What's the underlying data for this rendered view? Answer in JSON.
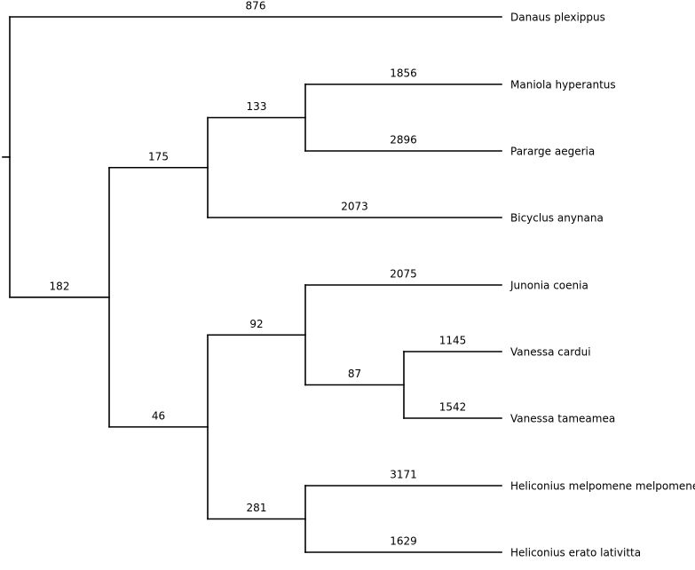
{
  "tree": {
    "nodes": [
      {
        "id": "root",
        "parent": null,
        "branch_label": ""
      },
      {
        "id": "danaus",
        "parent": "root",
        "branch_label": "876",
        "taxon": "Danaus plexippus"
      },
      {
        "id": "n1",
        "parent": "root",
        "branch_label": "182"
      },
      {
        "id": "n2",
        "parent": "n1",
        "branch_label": "175"
      },
      {
        "id": "n3",
        "parent": "n2",
        "branch_label": "133"
      },
      {
        "id": "maniola",
        "parent": "n3",
        "branch_label": "1856",
        "taxon": "Maniola hyperantus"
      },
      {
        "id": "pararge",
        "parent": "n3",
        "branch_label": "2896",
        "taxon": "Pararge aegeria"
      },
      {
        "id": "bicyclus",
        "parent": "n2",
        "branch_label": "2073",
        "taxon": "Bicyclus anynana"
      },
      {
        "id": "n4",
        "parent": "n1",
        "branch_label": "46"
      },
      {
        "id": "n5",
        "parent": "n4",
        "branch_label": "92"
      },
      {
        "id": "junonia",
        "parent": "n5",
        "branch_label": "2075",
        "taxon": "Junonia coenia"
      },
      {
        "id": "n6",
        "parent": "n5",
        "branch_label": "87"
      },
      {
        "id": "vcardui",
        "parent": "n6",
        "branch_label": "1145",
        "taxon": "Vanessa cardui"
      },
      {
        "id": "vtameamea",
        "parent": "n6",
        "branch_label": "1542",
        "taxon": "Vanessa tameamea"
      },
      {
        "id": "n7",
        "parent": "n4",
        "branch_label": "281"
      },
      {
        "id": "hmelpomene",
        "parent": "n7",
        "branch_label": "3171",
        "taxon": "Heliconius melpomene melpomene"
      },
      {
        "id": "herato",
        "parent": "n7",
        "branch_label": "1629",
        "taxon": "Heliconius erato lativitta"
      }
    ]
  }
}
